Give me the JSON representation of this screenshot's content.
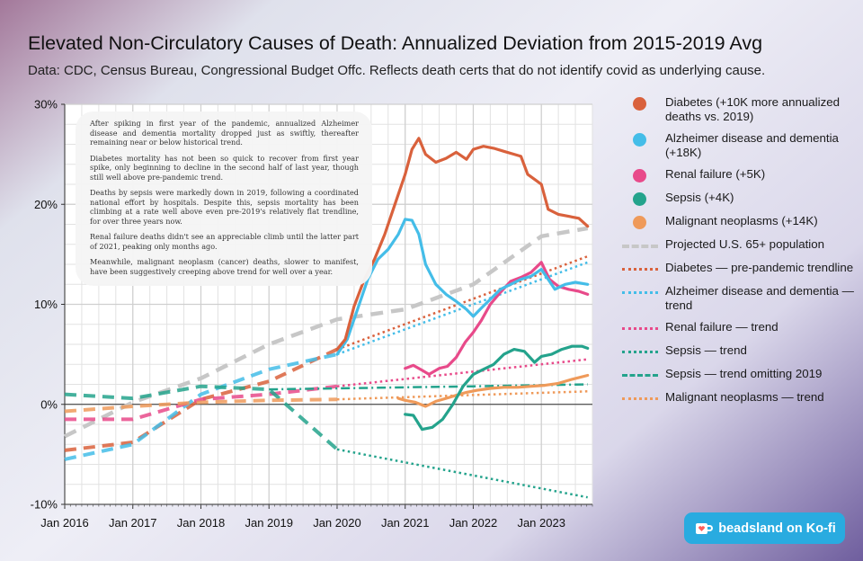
{
  "chart_data": {
    "type": "line",
    "title": "Elevated Non-Circulatory Causes of Death: Annualized Deviation from 2015-2019 Avg",
    "subtitle": "Data: CDC, Census Bureau, Congressional Budget Offc. Reflects death certs that do not identify covid as underlying cause.",
    "xlabel": "",
    "ylabel": "",
    "x_range": [
      2016.0,
      2023.75
    ],
    "ylim": [
      -10,
      30
    ],
    "x_ticks": [
      {
        "x": 2016,
        "label": "Jan 2016"
      },
      {
        "x": 2017,
        "label": "Jan 2017"
      },
      {
        "x": 2018,
        "label": "Jan 2018"
      },
      {
        "x": 2019,
        "label": "Jan 2019"
      },
      {
        "x": 2020,
        "label": "Jan 2020"
      },
      {
        "x": 2021,
        "label": "Jan 2021"
      },
      {
        "x": 2022,
        "label": "Jan 2022"
      },
      {
        "x": 2023,
        "label": "Jan 2023"
      }
    ],
    "y_ticks": [
      {
        "y": 30,
        "label": "30%"
      },
      {
        "y": 20,
        "label": "20%"
      },
      {
        "y": 10,
        "label": "10%"
      },
      {
        "y": 0,
        "label": "0%"
      },
      {
        "y": -10,
        "label": "-10%"
      }
    ],
    "grid": true,
    "legend_position": "right",
    "series": [
      {
        "name": "Diabetes (+10K more annualized deaths vs. 2019)",
        "color": "#d9613c",
        "style": "solid",
        "legend_style": "dot",
        "points": [
          [
            2020.0,
            5.5
          ],
          [
            2020.12,
            6.5
          ],
          [
            2020.25,
            9.8
          ],
          [
            2020.4,
            12.5
          ],
          [
            2020.55,
            14.5
          ],
          [
            2020.7,
            17.0
          ],
          [
            2020.85,
            20.0
          ],
          [
            2021.0,
            23.0
          ],
          [
            2021.1,
            25.5
          ],
          [
            2021.2,
            26.6
          ],
          [
            2021.3,
            25.0
          ],
          [
            2021.45,
            24.2
          ],
          [
            2021.6,
            24.6
          ],
          [
            2021.75,
            25.2
          ],
          [
            2021.9,
            24.5
          ],
          [
            2022.0,
            25.5
          ],
          [
            2022.15,
            25.8
          ],
          [
            2022.3,
            25.6
          ],
          [
            2022.45,
            25.3
          ],
          [
            2022.6,
            25.0
          ],
          [
            2022.7,
            24.8
          ],
          [
            2022.8,
            23.0
          ],
          [
            2022.9,
            22.5
          ],
          [
            2023.0,
            22.0
          ],
          [
            2023.1,
            19.5
          ],
          [
            2023.25,
            19.0
          ],
          [
            2023.4,
            18.8
          ],
          [
            2023.55,
            18.6
          ],
          [
            2023.68,
            17.8
          ]
        ]
      },
      {
        "name": "Alzheimer disease and dementia (+18K)",
        "color": "#44bde8",
        "style": "solid",
        "legend_style": "dot",
        "points": [
          [
            2020.0,
            5.0
          ],
          [
            2020.15,
            6.5
          ],
          [
            2020.3,
            9.5
          ],
          [
            2020.45,
            12.5
          ],
          [
            2020.6,
            14.5
          ],
          [
            2020.75,
            15.5
          ],
          [
            2020.9,
            17.0
          ],
          [
            2021.0,
            18.5
          ],
          [
            2021.1,
            18.4
          ],
          [
            2021.2,
            17.0
          ],
          [
            2021.3,
            14.0
          ],
          [
            2021.45,
            12.0
          ],
          [
            2021.6,
            11.0
          ],
          [
            2021.75,
            10.3
          ],
          [
            2021.9,
            9.5
          ],
          [
            2022.0,
            8.8
          ],
          [
            2022.1,
            9.5
          ],
          [
            2022.25,
            10.5
          ],
          [
            2022.4,
            11.5
          ],
          [
            2022.55,
            12.0
          ],
          [
            2022.7,
            12.5
          ],
          [
            2022.85,
            12.8
          ],
          [
            2023.0,
            13.5
          ],
          [
            2023.1,
            12.5
          ],
          [
            2023.2,
            11.5
          ],
          [
            2023.35,
            12.0
          ],
          [
            2023.5,
            12.2
          ],
          [
            2023.68,
            12.0
          ]
        ]
      },
      {
        "name": "Renal failure (+5K)",
        "color": "#e84a8a",
        "style": "solid",
        "legend_style": "dot",
        "points": [
          [
            2021.0,
            3.6
          ],
          [
            2021.12,
            3.9
          ],
          [
            2021.25,
            3.4
          ],
          [
            2021.35,
            3.0
          ],
          [
            2021.5,
            3.6
          ],
          [
            2021.62,
            3.8
          ],
          [
            2021.75,
            4.7
          ],
          [
            2021.88,
            6.2
          ],
          [
            2022.0,
            7.2
          ],
          [
            2022.12,
            8.4
          ],
          [
            2022.25,
            10.0
          ],
          [
            2022.4,
            11.2
          ],
          [
            2022.55,
            12.3
          ],
          [
            2022.7,
            12.7
          ],
          [
            2022.85,
            13.2
          ],
          [
            2023.0,
            14.2
          ],
          [
            2023.12,
            12.5
          ],
          [
            2023.25,
            11.8
          ],
          [
            2023.4,
            11.5
          ],
          [
            2023.55,
            11.3
          ],
          [
            2023.68,
            11.0
          ]
        ]
      },
      {
        "name": "Sepsis (+4K)",
        "color": "#24a38c",
        "style": "solid",
        "legend_style": "dot",
        "points": [
          [
            2021.0,
            -1.0
          ],
          [
            2021.12,
            -1.1
          ],
          [
            2021.25,
            -2.5
          ],
          [
            2021.4,
            -2.3
          ],
          [
            2021.55,
            -1.5
          ],
          [
            2021.7,
            0.0
          ],
          [
            2021.85,
            1.8
          ],
          [
            2022.0,
            3.0
          ],
          [
            2022.15,
            3.5
          ],
          [
            2022.3,
            4.0
          ],
          [
            2022.45,
            5.0
          ],
          [
            2022.6,
            5.5
          ],
          [
            2022.75,
            5.3
          ],
          [
            2022.9,
            4.2
          ],
          [
            2023.0,
            4.8
          ],
          [
            2023.15,
            5.0
          ],
          [
            2023.3,
            5.5
          ],
          [
            2023.45,
            5.8
          ],
          [
            2023.6,
            5.8
          ],
          [
            2023.68,
            5.6
          ]
        ]
      },
      {
        "name": "Malignant neoplasms (+14K)",
        "color": "#ef9a5a",
        "style": "solid",
        "legend_style": "dot",
        "points": [
          [
            2020.9,
            0.6
          ],
          [
            2021.0,
            0.4
          ],
          [
            2021.15,
            0.2
          ],
          [
            2021.3,
            -0.2
          ],
          [
            2021.45,
            0.3
          ],
          [
            2021.6,
            0.6
          ],
          [
            2021.75,
            0.9
          ],
          [
            2021.9,
            1.2
          ],
          [
            2022.05,
            1.4
          ],
          [
            2022.25,
            1.6
          ],
          [
            2022.45,
            1.7
          ],
          [
            2022.65,
            1.7
          ],
          [
            2022.85,
            1.8
          ],
          [
            2023.05,
            1.9
          ],
          [
            2023.25,
            2.1
          ],
          [
            2023.45,
            2.5
          ],
          [
            2023.68,
            2.9
          ]
        ]
      },
      {
        "name": "Projected U.S. 65+ population",
        "color": "#c7c7c7",
        "style": "dash-long",
        "legend_style": "dash-long",
        "points": [
          [
            2016.0,
            -3.2
          ],
          [
            2017.0,
            0.2
          ],
          [
            2018.0,
            2.6
          ],
          [
            2019.0,
            6.0
          ],
          [
            2020.0,
            8.5
          ],
          [
            2021.0,
            9.5
          ],
          [
            2022.0,
            12.0
          ],
          [
            2023.0,
            16.8
          ],
          [
            2023.68,
            17.6
          ]
        ]
      },
      {
        "name": "Diabetes — pre-pandemic trendline",
        "color": "#d9613c",
        "style": "dot",
        "legend_style": "dot-line",
        "points": [
          [
            2016.0,
            -4.6
          ],
          [
            2017.0,
            -3.8
          ],
          [
            2018.0,
            0.5
          ],
          [
            2019.0,
            2.3
          ],
          [
            2020.0,
            5.5
          ]
        ],
        "trend": [
          [
            2020.0,
            5.5
          ],
          [
            2023.68,
            14.8
          ]
        ]
      },
      {
        "name": "Alzheimer disease and dementia — trend",
        "color": "#44bde8",
        "style": "dot",
        "legend_style": "dot-line",
        "points": [
          [
            2016.0,
            -5.5
          ],
          [
            2017.0,
            -4.0
          ],
          [
            2018.0,
            1.0
          ],
          [
            2019.0,
            3.5
          ],
          [
            2020.0,
            5.0
          ]
        ],
        "trend": [
          [
            2020.0,
            5.0
          ],
          [
            2023.68,
            14.2
          ]
        ]
      },
      {
        "name": "Renal failure — trend",
        "color": "#e84a8a",
        "style": "dot",
        "legend_style": "dot-line",
        "points": [
          [
            2016.0,
            -1.5
          ],
          [
            2017.0,
            -1.5
          ],
          [
            2018.0,
            0.5
          ],
          [
            2019.0,
            1.0
          ],
          [
            2020.0,
            1.8
          ]
        ],
        "trend": [
          [
            2020.0,
            1.8
          ],
          [
            2023.68,
            4.5
          ]
        ]
      },
      {
        "name": "Sepsis — trend",
        "color": "#24a38c",
        "style": "dot",
        "legend_style": "dot-line",
        "points": [
          [
            2016.0,
            1.0
          ],
          [
            2017.0,
            0.6
          ],
          [
            2018.0,
            1.8
          ],
          [
            2019.0,
            1.5
          ],
          [
            2020.0,
            -4.5
          ]
        ],
        "trend": [
          [
            2020.0,
            -4.5
          ],
          [
            2023.68,
            -9.3
          ]
        ]
      },
      {
        "name": "Sepsis — trend omitting 2019",
        "color": "#24a38c",
        "style": "dash-dot",
        "legend_style": "dash-dot",
        "points": [
          [
            2019.0,
            1.5
          ],
          [
            2020.0,
            1.6
          ],
          [
            2021.0,
            1.7
          ],
          [
            2022.0,
            1.8
          ],
          [
            2023.68,
            2.0
          ]
        ]
      },
      {
        "name": "Malignant neoplasms — trend",
        "color": "#ef9a5a",
        "style": "dot",
        "legend_style": "dot-line",
        "points": [
          [
            2016.0,
            -0.7
          ],
          [
            2017.0,
            -0.2
          ],
          [
            2018.0,
            0.2
          ],
          [
            2019.0,
            0.4
          ],
          [
            2020.0,
            0.5
          ]
        ],
        "trend": [
          [
            2020.0,
            0.5
          ],
          [
            2023.68,
            1.3
          ]
        ]
      }
    ]
  },
  "annotation": {
    "paragraphs": [
      "After spiking in first year of the pandemic, annualized Alzheimer disease and dementia mortality dropped just as swiftly, thereafter remaining near or below historical trend.",
      "Diabetes mortality has not been so quick to recover from first year spike, only beginning to decline in the second half of last year, though still well above pre-pandemic trend.",
      "Deaths by sepsis were markedly down in 2019, following a coordinated national effort by hospitals. Despite this, sepsis mortality has been climbing at a rate well above even pre-2019's relatively flat trendline, for over three years now.",
      "Renal failure deaths didn't see an appreciable climb until the latter part of 2021, peaking only months ago.",
      "Meanwhile, malignant neoplasm (cancer) deaths, slower to manifest, have been suggestively creeping above trend for well over a year."
    ]
  },
  "legend": {
    "items": [
      {
        "label": "Diabetes (+10K more annualized deaths vs. 2019)",
        "color": "#d9613c",
        "style": "dot"
      },
      {
        "label": "Alzheimer disease and dementia (+18K)",
        "color": "#44bde8",
        "style": "dot"
      },
      {
        "label": "Renal failure (+5K)",
        "color": "#e84a8a",
        "style": "dot"
      },
      {
        "label": "Sepsis (+4K)",
        "color": "#24a38c",
        "style": "dot"
      },
      {
        "label": "Malignant neoplasms (+14K)",
        "color": "#ef9a5a",
        "style": "dot"
      },
      {
        "label": "Projected U.S. 65+ population",
        "color": "#c7c7c7",
        "style": "dash-long"
      },
      {
        "label": "Diabetes — pre-pandemic trendline",
        "color": "#d9613c",
        "style": "dot-line"
      },
      {
        "label": "Alzheimer disease and dementia — trend",
        "color": "#44bde8",
        "style": "dot-line"
      },
      {
        "label": "Renal failure — trend",
        "color": "#e84a8a",
        "style": "dot-line"
      },
      {
        "label": "Sepsis — trend",
        "color": "#24a38c",
        "style": "dot-line"
      },
      {
        "label": "Sepsis — trend omitting 2019",
        "color": "#24a38c",
        "style": "dash-dot"
      },
      {
        "label": "Malignant neoplasms — trend",
        "color": "#ef9a5a",
        "style": "dot-line"
      }
    ]
  },
  "kofi": {
    "label": "beadsland on Ko-fi",
    "icon": "coffee-cup-heart-icon"
  }
}
